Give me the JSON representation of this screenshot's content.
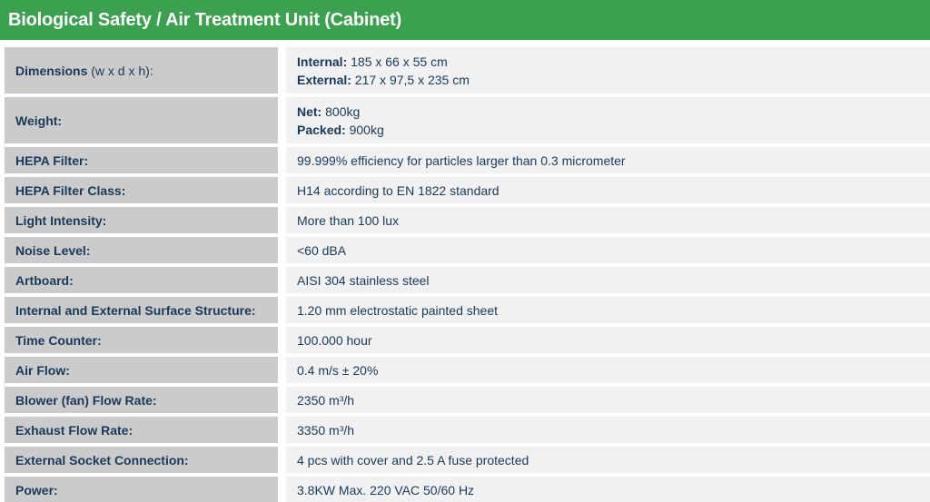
{
  "header": {
    "title": "Biological Safety / Air Treatment Unit (Cabinet)"
  },
  "colors": {
    "header_bg": "#3aa14f",
    "header_text": "#ffffff",
    "label_bg": "#cbcbcb",
    "value_bg": "#f1f1f2",
    "text": "#173a5c"
  },
  "table": {
    "rows": [
      {
        "label_bold": "Dimensions",
        "label_rest": " (w x d x h):",
        "tall": true,
        "lines": [
          {
            "b": "Internal:",
            "t": " 185 x 66 x 55 cm"
          },
          {
            "b": "External:",
            "t": " 217 x 97,5 x 235 cm"
          }
        ]
      },
      {
        "label_bold": "Weight:",
        "label_rest": "",
        "tall": true,
        "lines": [
          {
            "b": "Net:",
            "t": " 800kg"
          },
          {
            "b": "Packed:",
            "t": " 900kg"
          }
        ]
      },
      {
        "label_bold": "HEPA Filter:",
        "label_rest": "",
        "lines": [
          {
            "b": "",
            "t": "99.999% efficiency for particles larger than 0.3 micrometer"
          }
        ]
      },
      {
        "label_bold": "HEPA Filter Class:",
        "label_rest": "",
        "lines": [
          {
            "b": "",
            "t": "H14 according to EN 1822 standard"
          }
        ]
      },
      {
        "label_bold": "Light Intensity:",
        "label_rest": "",
        "lines": [
          {
            "b": "",
            "t": "More than 100 lux"
          }
        ]
      },
      {
        "label_bold": "Noise Level:",
        "label_rest": "",
        "lines": [
          {
            "b": "",
            "t": "<60 dBA"
          }
        ]
      },
      {
        "label_bold": "Artboard:",
        "label_rest": "",
        "lines": [
          {
            "b": "",
            "t": "AISI 304 stainless steel"
          }
        ]
      },
      {
        "label_bold": "Internal and External Surface Structure:",
        "label_rest": "",
        "lines": [
          {
            "b": "",
            "t": "1.20 mm electrostatic painted sheet"
          }
        ]
      },
      {
        "label_bold": "Time Counter:",
        "label_rest": "",
        "lines": [
          {
            "b": "",
            "t": "100.000 hour"
          }
        ]
      },
      {
        "label_bold": "Air Flow:",
        "label_rest": "",
        "lines": [
          {
            "b": "",
            "t": "0.4 m/s ± 20%"
          }
        ]
      },
      {
        "label_bold": "Blower (fan) Flow Rate:",
        "label_rest": "",
        "lines": [
          {
            "b": "",
            "t": "2350 m³/h"
          }
        ]
      },
      {
        "label_bold": "Exhaust Flow Rate:",
        "label_rest": "",
        "lines": [
          {
            "b": "",
            "t": "3350 m³/h"
          }
        ]
      },
      {
        "label_bold": "External Socket Connection:",
        "label_rest": "",
        "lines": [
          {
            "b": "",
            "t": "4 pcs with cover and 2.5 A fuse protected"
          }
        ]
      },
      {
        "label_bold": "Power:",
        "label_rest": "",
        "lines": [
          {
            "b": "",
            "t": "3.8KW Max. 220 VAC 50/60 Hz"
          }
        ]
      }
    ]
  }
}
